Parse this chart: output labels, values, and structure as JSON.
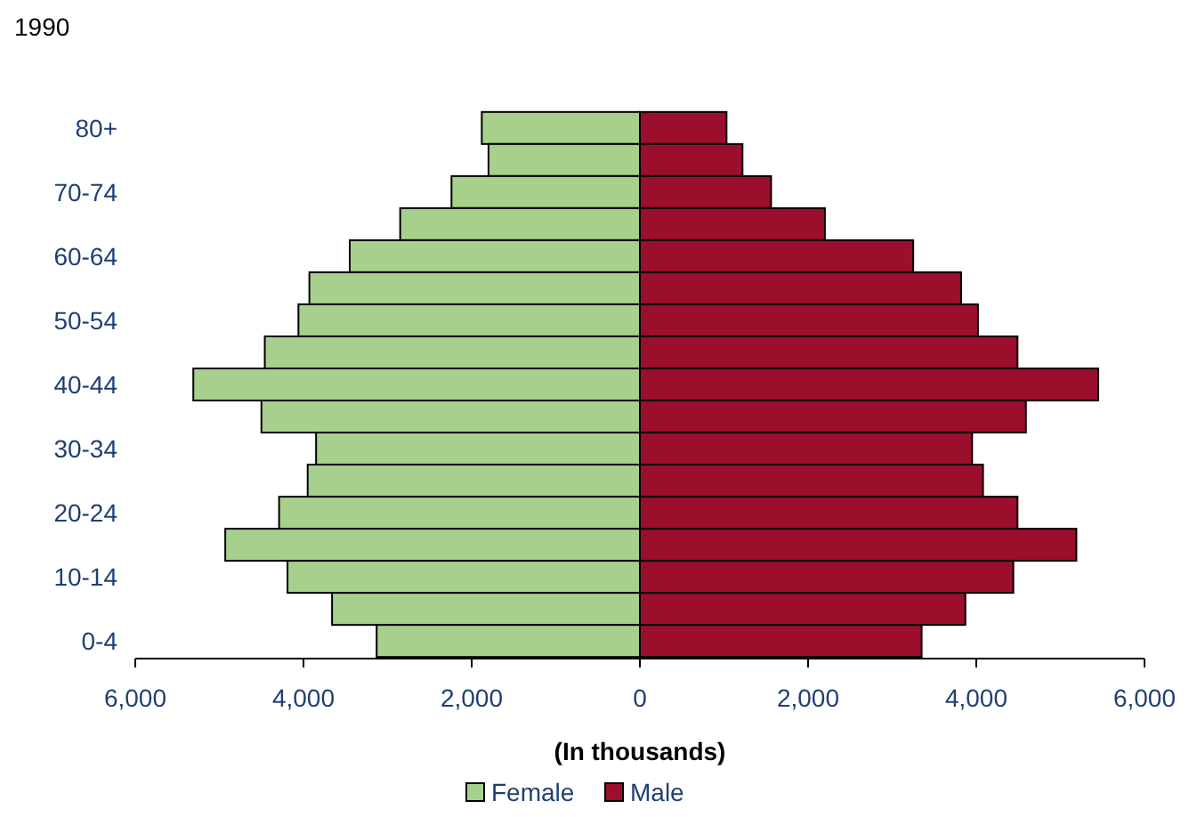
{
  "chart_data": {
    "type": "bar",
    "title": "1990",
    "orientation": "horizontal",
    "stacked": true,
    "categories": [
      "80+",
      null,
      "70-74",
      null,
      "60-64",
      null,
      "50-54",
      null,
      "40-44",
      null,
      "30-34",
      null,
      "20-24",
      null,
      "10-14",
      null,
      "0-4"
    ],
    "series": [
      {
        "name": "Female",
        "color": "#a8d08d",
        "values": [
          -1880,
          -1800,
          -2240,
          -2850,
          -3450,
          -3930,
          -4060,
          -4460,
          -5310,
          -4500,
          -3850,
          -3950,
          -4290,
          -4930,
          -4190,
          -3660,
          -3130
        ]
      },
      {
        "name": "Male",
        "color": "#9b0f2c",
        "values": [
          1030,
          1220,
          1560,
          2200,
          3250,
          3820,
          4020,
          4490,
          5450,
          4590,
          3950,
          4080,
          4490,
          5190,
          4440,
          3870,
          3350
        ]
      }
    ],
    "xlim": [
      -6000,
      6000
    ],
    "xticks": [
      {
        "value": -6000,
        "label": "6,000"
      },
      {
        "value": -4000,
        "label": "4,000"
      },
      {
        "value": -2000,
        "label": "2,000"
      },
      {
        "value": 0,
        "label": "0"
      },
      {
        "value": 2000,
        "label": "2,000"
      },
      {
        "value": 4000,
        "label": "4,000"
      },
      {
        "value": 6000,
        "label": "6,000"
      }
    ],
    "xlabel": "(In thousands)",
    "legend": "bottom"
  }
}
